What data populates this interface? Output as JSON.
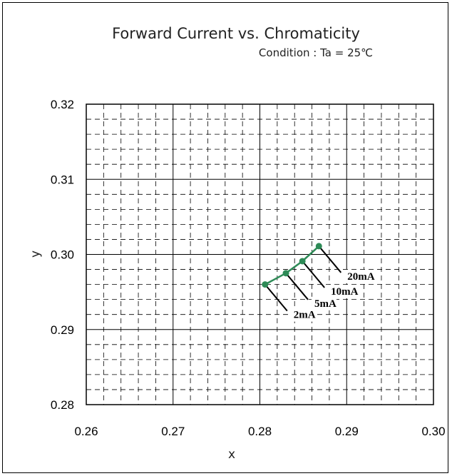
{
  "chart_data": {
    "type": "scatter",
    "title": "Forward Current vs. Chromaticity",
    "subtitle": "Condition : Ta = 25℃",
    "xlabel": "x",
    "ylabel": "y",
    "xlim": [
      0.26,
      0.3
    ],
    "ylim": [
      0.28,
      0.32
    ],
    "xticks": [
      "0.26",
      "0.27",
      "0.28",
      "0.29",
      "0.30"
    ],
    "yticks": [
      "0.28",
      "0.29",
      "0.30",
      "0.31",
      "0.32"
    ],
    "grid": true,
    "series_color": "#2e8b57",
    "points": [
      {
        "x": 0.2806,
        "y": 0.296,
        "label": "2mA"
      },
      {
        "x": 0.283,
        "y": 0.2975,
        "label": "5mA"
      },
      {
        "x": 0.2849,
        "y": 0.2991,
        "label": "10mA"
      },
      {
        "x": 0.2868,
        "y": 0.3011,
        "label": "20mA"
      }
    ]
  }
}
